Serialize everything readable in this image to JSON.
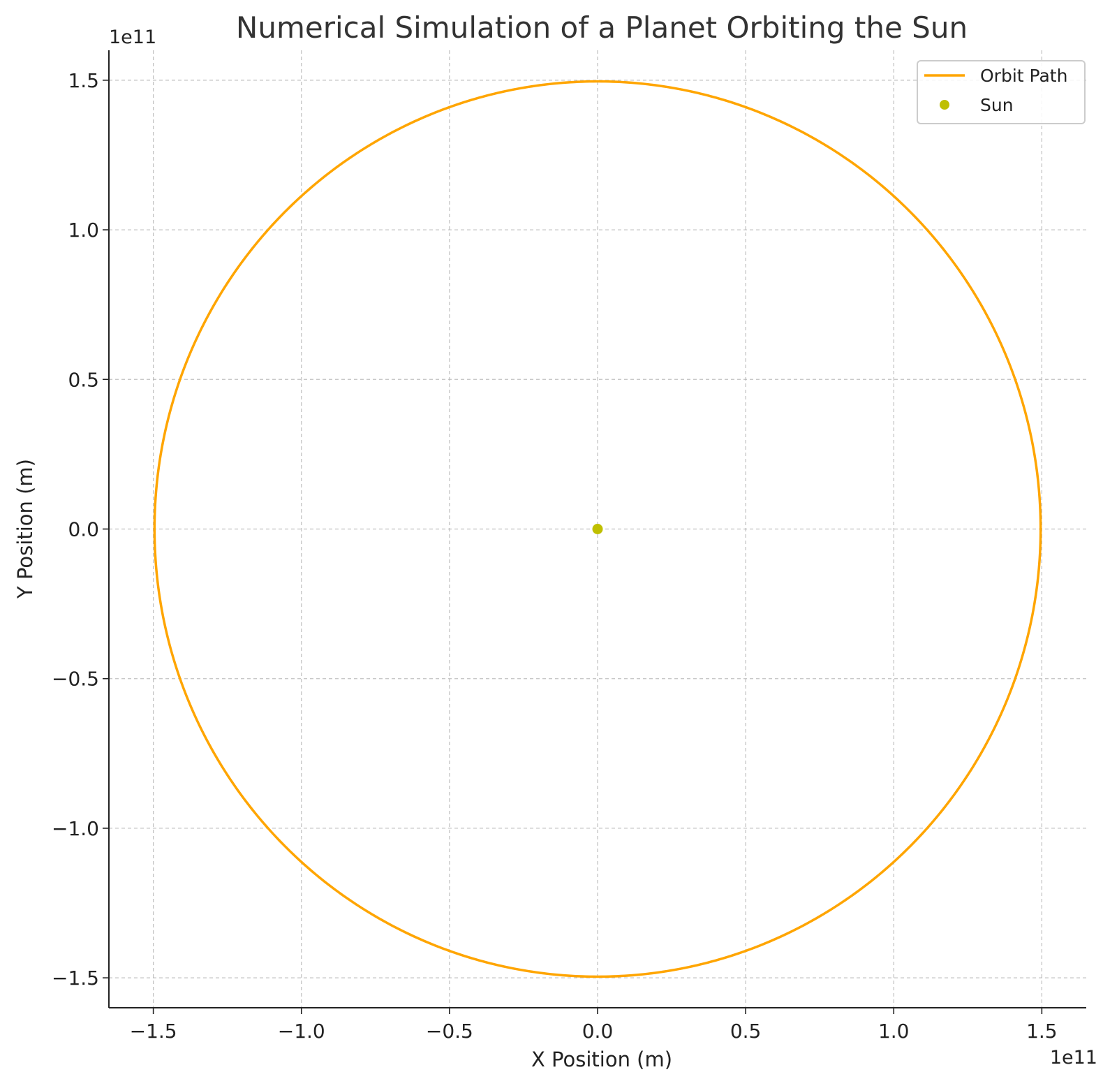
{
  "chart_data": {
    "type": "line",
    "title": "Numerical Simulation of a Planet Orbiting the Sun",
    "xlabel": "X Position (m)",
    "ylabel": "Y Position (m)",
    "x_offset_label": "1e11",
    "y_offset_label": "1e11",
    "xlim": [
      -1.65,
      1.65
    ],
    "ylim": [
      -1.6,
      1.6
    ],
    "scale_exponent": 11,
    "xticks": [
      -1.5,
      -1.0,
      -0.5,
      0.0,
      0.5,
      1.0,
      1.5
    ],
    "yticks": [
      -1.5,
      -1.0,
      -0.5,
      0.0,
      0.5,
      1.0,
      1.5
    ],
    "xtick_labels": [
      "−1.5",
      "−1.0",
      "−0.5",
      "0.0",
      "0.5",
      "1.0",
      "1.5"
    ],
    "ytick_labels": [
      "−1.5",
      "−1.0",
      "−0.5",
      "0.0",
      "0.5",
      "1.0",
      "1.5"
    ],
    "grid": true,
    "legend_position": "top-right",
    "series": [
      {
        "name": "Orbit Path",
        "kind": "line",
        "color": "#FFA500",
        "shape": "circle",
        "center": [
          0,
          0
        ],
        "radius": 1.496
      },
      {
        "name": "Sun",
        "kind": "point",
        "color": "#BFBF00",
        "x": [
          0
        ],
        "y": [
          0
        ]
      }
    ]
  }
}
